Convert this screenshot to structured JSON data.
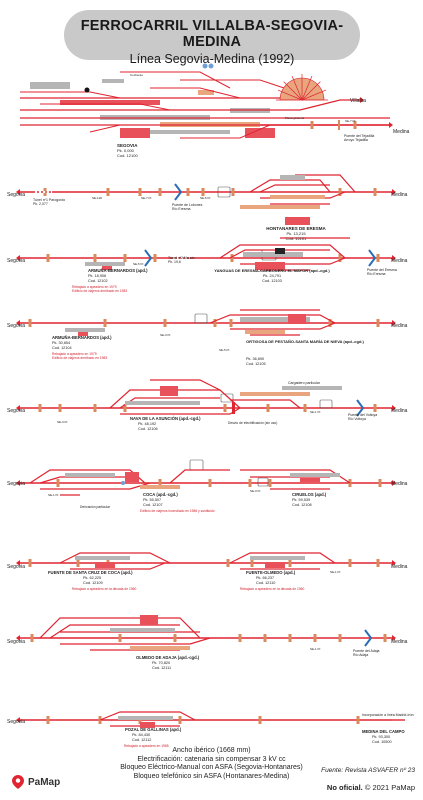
{
  "header": {
    "title": "FERROCARRIL VILLALBA-SEGOVIA-MEDINA",
    "subtitle": "Línea Segovia-Medina (1992)"
  },
  "colors": {
    "track": "#e02430",
    "platform": "#b5b5b5",
    "building": "#e8505a",
    "warehouse": "#e8a57e",
    "header_bg": "#c9c9c9",
    "river": "#2a6fb5",
    "signal": "#d98a5c"
  },
  "strips": {
    "segovia": {
      "directions": {
        "right": "Medina",
        "top_right": "Villalba"
      },
      "stations": [
        {
          "name": "SEGOVIA",
          "pk": "Pk. 0,000",
          "code": "Cod. 12100"
        }
      ],
      "small": [
        "Puente del Tejadilla",
        "Arroyo Tejadilla",
        "SE-7 Pr.",
        "Cocheras",
        "Placa giratoria"
      ]
    },
    "hontanares": {
      "directions": {
        "left": "Segovia",
        "right": "Medina"
      },
      "stations": [
        {
          "name": "HONTANARES DE ERESMA",
          "pk": "Pk. 13,215",
          "code": "Cod. 12101"
        }
      ],
      "small": [
        "Túnel nº1 Parogordo",
        "Pk. 2,077",
        "Puente de Lobones",
        "Río Eresma",
        "SE-118",
        "SE-7 Pr.",
        "SE-5 Pr."
      ]
    },
    "yanguas": {
      "directions": {
        "left": "Segovia",
        "right": "Medina"
      },
      "stations": [
        {
          "name": "ARMUÑA-BERNARDOS (apd.)",
          "pk": "Pk. 18,906",
          "code": "Cod. 12102",
          "note": "Rebajado a apeadero en 1979\nEdificio de viajeros derribado en 1983"
        },
        {
          "name": "YANGUAS DE ERESMA-CARBONERO EL MAYOR (apd.-cgd.)",
          "pk": "Pk. 24,791",
          "code": "Cod. 12103"
        }
      ],
      "small": [
        "Túnel nº2 Ahusín",
        "Pk. 19,6",
        "Puente del Eresma",
        "Río Eresma",
        "SE-5 Pr."
      ]
    },
    "ortigosa": {
      "directions": {
        "left": "Segovia",
        "right": "Medina"
      },
      "stations": [
        {
          "name": "ARMUÑA-BERNARDOS (apd.)",
          "pk": "Pk. 30,654",
          "code": "Cod. 12104",
          "note": "Rebajado a apeadero en 1979\nEdificio de viajeros derribado en 1983"
        },
        {
          "name": "ORTIGOSA DE PESTAÑO-SANTA MARÍA DE NIEVA (apd.-cgd.)",
          "pk": "Pk. 36,690",
          "code": "Cod. 12105"
        }
      ],
      "small": [
        "SE-3 Pr.",
        "SE-5 Pr."
      ]
    },
    "nava": {
      "directions": {
        "left": "Segovia",
        "right": "Medina"
      },
      "stations": [
        {
          "name": "NAVA DE LA ASUNCIÓN (apd.-cgd.)",
          "pk": "Pk. 48,192",
          "code": "Cod. 12106"
        }
      ],
      "small": [
        "Cargadero particular",
        "Desvío de electrificación (sin uso)",
        "Puente del Voltoya",
        "Río Voltoya",
        "SE-3 Pr.",
        "SE-1 Pr."
      ]
    },
    "coca": {
      "directions": {
        "left": "Segovia",
        "right": "Medina"
      },
      "stations": [
        {
          "name": "COCA (apd.-cgd.)",
          "pk": "Pk. 55,507",
          "code": "Cod. 12107",
          "note": "Edificio de viajeros incendiado en 1986 y sustituido"
        },
        {
          "name": "CIRUELOS (apd.)",
          "pk": "Pk. 59,539",
          "code": "Cod. 12108"
        }
      ],
      "small": [
        "Derivación particular",
        "SE-1 Pr.",
        "SE-3 Pr."
      ]
    },
    "fuente": {
      "directions": {
        "left": "Segovia",
        "right": "Medina"
      },
      "stations": [
        {
          "name": "FUENTE DE SANTA CRUZ DE COCA (apd.)",
          "pk": "Pk. 62,225",
          "code": "Cod. 12109",
          "note": "Rebajado a apeadero en la década de 1960"
        },
        {
          "name": "FUENTE-OLMEDO (apd.)",
          "pk": "Pk. 66,237",
          "code": "Cod. 12110",
          "note": "Rebajado a apeadero en la década de 1960"
        }
      ],
      "small": [
        "SE-1 Pr."
      ]
    },
    "olmedo": {
      "directions": {
        "left": "Segovia",
        "right": "Medina"
      },
      "stations": [
        {
          "name": "OLMEDO DE ADAJA (apd.-cgd.)",
          "pk": "Pk. 70,820",
          "code": "Cod. 12111"
        }
      ],
      "small": [
        "Puente del Adaja",
        "Río Adaja",
        "SE-1 Pr."
      ]
    },
    "medina": {
      "directions": {
        "left": "Segovia"
      },
      "stations": [
        {
          "name": "POZAL DE GALLINAS (apd.)",
          "pk": "Pk. 84,430",
          "code": "Cod. 12112",
          "note": "Rebajado a apeadero en 1985"
        },
        {
          "name": "MEDINA DEL CAMPO",
          "pk": "Pk. 93,300",
          "code": "Cod. 10500"
        }
      ],
      "small": [
        "Incorporación a línea Madrid-Irún"
      ]
    }
  },
  "footer": {
    "line1": "Ancho ibérico (1668 mm)",
    "line2": "Electrificación: catenaria sin compensar 3 kV cc",
    "line3": "Bloqueo Eléctrico-Manual con ASFA (Segovia-Hontanares)",
    "line4": "Bloqueo telefónico sin ASFA (Hontanares-Medina)",
    "source": "Fuente: Revista ASVAFER nº 23",
    "license_strong": "No oficial.",
    "license_rest": " © 2021 PaMap",
    "brand": "PaMap"
  }
}
